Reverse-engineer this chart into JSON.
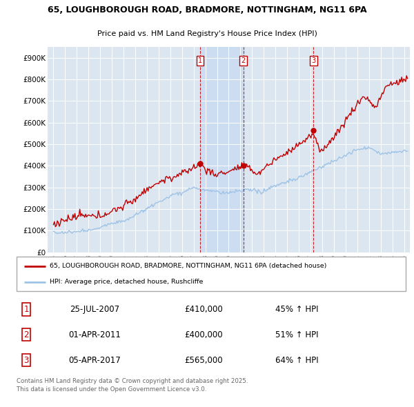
{
  "title1": "65, LOUGHBOROUGH ROAD, BRADMORE, NOTTINGHAM, NG11 6PA",
  "title2": "Price paid vs. HM Land Registry's House Price Index (HPI)",
  "red_label": "65, LOUGHBOROUGH ROAD, BRADMORE, NOTTINGHAM, NG11 6PA (detached house)",
  "blue_label": "HPI: Average price, detached house, Rushcliffe",
  "footer": "Contains HM Land Registry data © Crown copyright and database right 2025.\nThis data is licensed under the Open Government Licence v3.0.",
  "transactions": [
    {
      "num": 1,
      "date": "25-JUL-2007",
      "x_year": 2007.56,
      "price": 410000,
      "hpi_pct": "45% ↑ HPI"
    },
    {
      "num": 2,
      "date": "01-APR-2011",
      "x_year": 2011.25,
      "price": 400000,
      "hpi_pct": "51% ↑ HPI"
    },
    {
      "num": 3,
      "date": "05-APR-2017",
      "x_year": 2017.26,
      "price": 565000,
      "hpi_pct": "64% ↑ HPI"
    }
  ],
  "ylim": [
    0,
    950000
  ],
  "yticks": [
    0,
    100000,
    200000,
    300000,
    400000,
    500000,
    600000,
    700000,
    800000,
    900000
  ],
  "ytick_labels": [
    "£0",
    "£100K",
    "£200K",
    "£300K",
    "£400K",
    "£500K",
    "£600K",
    "£700K",
    "£800K",
    "£900K"
  ],
  "xlim_start": 1994.5,
  "xlim_end": 2025.5,
  "xticks": [
    1995,
    1996,
    1997,
    1998,
    1999,
    2000,
    2001,
    2002,
    2003,
    2004,
    2005,
    2006,
    2007,
    2008,
    2009,
    2010,
    2011,
    2012,
    2013,
    2014,
    2015,
    2016,
    2017,
    2018,
    2019,
    2020,
    2021,
    2022,
    2023,
    2024,
    2025
  ],
  "plot_bg": "#dce6f1",
  "red_color": "#c00000",
  "blue_color": "#9dc3e6",
  "vline_color": "#c00000",
  "shade_color": "#c6d9f1",
  "grid_color": "#ffffff",
  "legend_border": "#aaaaaa",
  "table_border": "#c00000"
}
